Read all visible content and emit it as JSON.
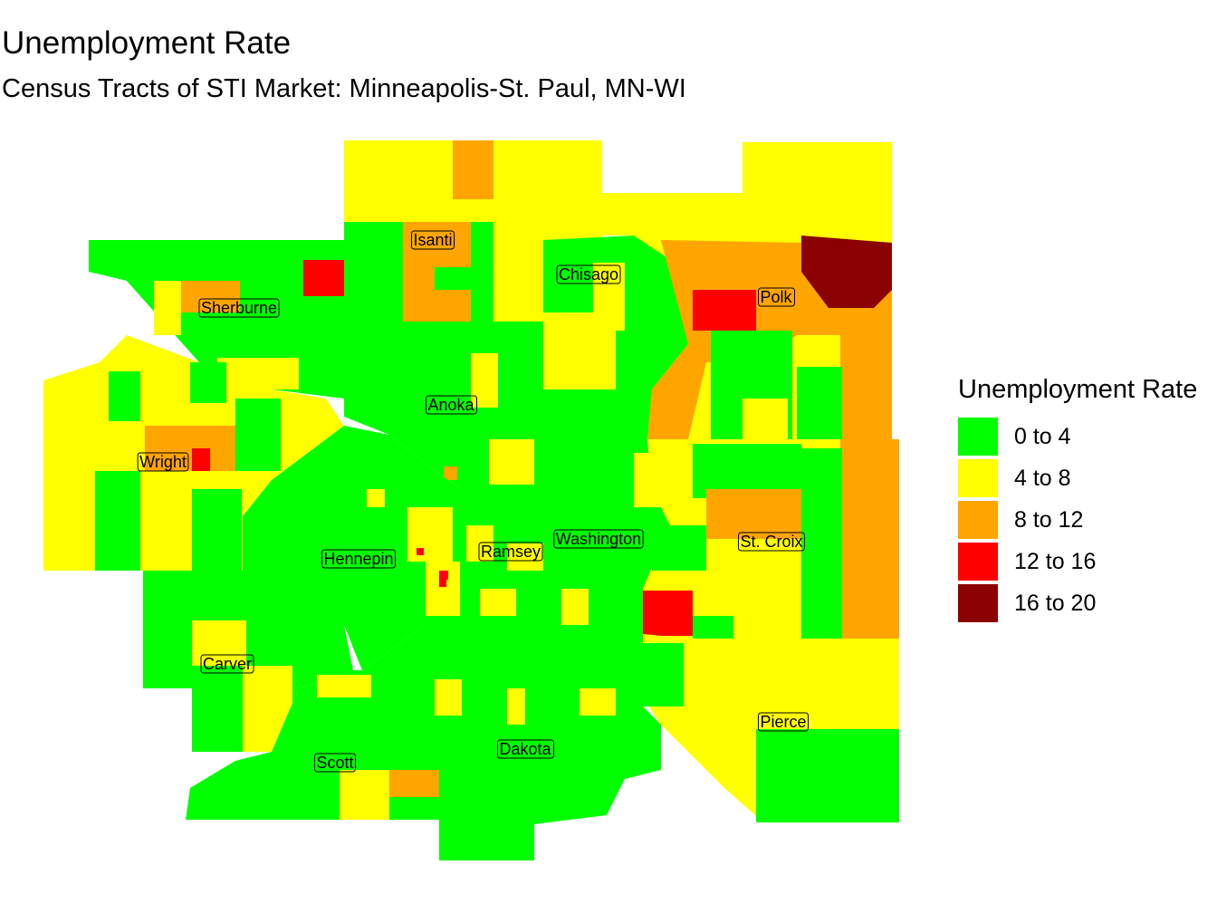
{
  "title": "Unemployment Rate",
  "subtitle": "Census Tracts of STI Market: Minneapolis-St. Paul, MN-WI",
  "legend": {
    "title": "Unemployment Rate",
    "items": [
      {
        "label": "0 to 4",
        "color": "#00FF00"
      },
      {
        "label": "4 to 8",
        "color": "#FFFF00"
      },
      {
        "label": "8 to 12",
        "color": "#FFA500"
      },
      {
        "label": "12 to 16",
        "color": "#FF0000"
      },
      {
        "label": "16 to 20",
        "color": "#8B0000"
      }
    ]
  },
  "counties": [
    "Isanti",
    "Chisago",
    "Polk",
    "Sherburne",
    "Anoka",
    "Wright",
    "Hennepin",
    "Ramsey",
    "Washington",
    "St. Croix",
    "Carver",
    "Scott",
    "Dakota",
    "Pierce"
  ]
}
